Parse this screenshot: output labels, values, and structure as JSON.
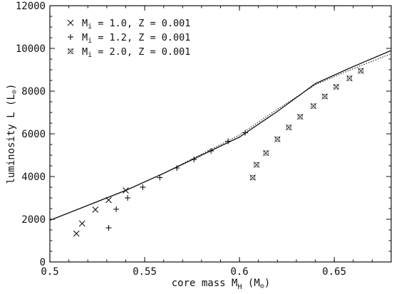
{
  "chart_data": {
    "type": "scatter",
    "xlim": [
      0.5,
      0.68
    ],
    "ylim": [
      0,
      12000
    ],
    "x_ticks": [
      0.5,
      0.55,
      0.6,
      0.65
    ],
    "x_tick_labels": [
      "0.5",
      "0.55",
      "0.6",
      "0.65"
    ],
    "y_ticks": [
      0,
      2000,
      4000,
      6000,
      8000,
      10000,
      12000
    ],
    "y_tick_labels": [
      "0",
      "2000",
      "4000",
      "6000",
      "8000",
      "10000",
      "12000"
    ],
    "xlabel": {
      "pre": "core mass  M",
      "sub": "H",
      "post": "  (M",
      "post_sub": "⊙",
      "end": ")"
    },
    "ylabel": {
      "pre": "luminosity  L  (L",
      "sub": "⊙",
      "end": ")"
    },
    "grid": false,
    "legend_position": "top-left",
    "series": [
      {
        "name": "M_i = 1.0, Z = 0.001",
        "label": {
          "pre": "M",
          "sub": "i",
          "post": " = 1.0, Z = 0.001"
        },
        "marker": "x",
        "x": [
          0.514,
          0.517,
          0.524,
          0.531,
          0.54
        ],
        "y": [
          1330,
          1800,
          2450,
          2900,
          3350
        ]
      },
      {
        "name": "M_i = 1.2, Z = 0.001",
        "label": {
          "pre": "M",
          "sub": "i",
          "post": " = 1.2, Z = 0.001"
        },
        "marker": "plus",
        "x": [
          0.531,
          0.535,
          0.541,
          0.549,
          0.558,
          0.567,
          0.576,
          0.585,
          0.594,
          0.603
        ],
        "y": [
          1600,
          2470,
          3000,
          3500,
          3950,
          4400,
          4800,
          5200,
          5650,
          6050
        ]
      },
      {
        "name": "M_i = 2.0, Z = 0.001",
        "label": {
          "pre": "M",
          "sub": "i",
          "post": " = 2.0, Z = 0.001"
        },
        "marker": "star",
        "x": [
          0.607,
          0.609,
          0.614,
          0.62,
          0.626,
          0.632,
          0.639,
          0.645,
          0.651,
          0.658,
          0.664
        ],
        "y": [
          3950,
          4550,
          5100,
          5750,
          6300,
          6800,
          7300,
          7750,
          8200,
          8600,
          8950
        ]
      }
    ],
    "lines": [
      {
        "style": "solid",
        "x": [
          0.5,
          0.52,
          0.54,
          0.56,
          0.58,
          0.6,
          0.62,
          0.64,
          0.66,
          0.68
        ],
        "y": [
          1950,
          2650,
          3350,
          4150,
          5000,
          5850,
          7050,
          8350,
          9150,
          9900
        ]
      },
      {
        "style": "dotted",
        "x": [
          0.5,
          0.52,
          0.54,
          0.56,
          0.58,
          0.6,
          0.62,
          0.64,
          0.66,
          0.68
        ],
        "y": [
          1950,
          2650,
          3350,
          4150,
          5050,
          5950,
          7150,
          8300,
          9050,
          9750
        ]
      }
    ]
  }
}
